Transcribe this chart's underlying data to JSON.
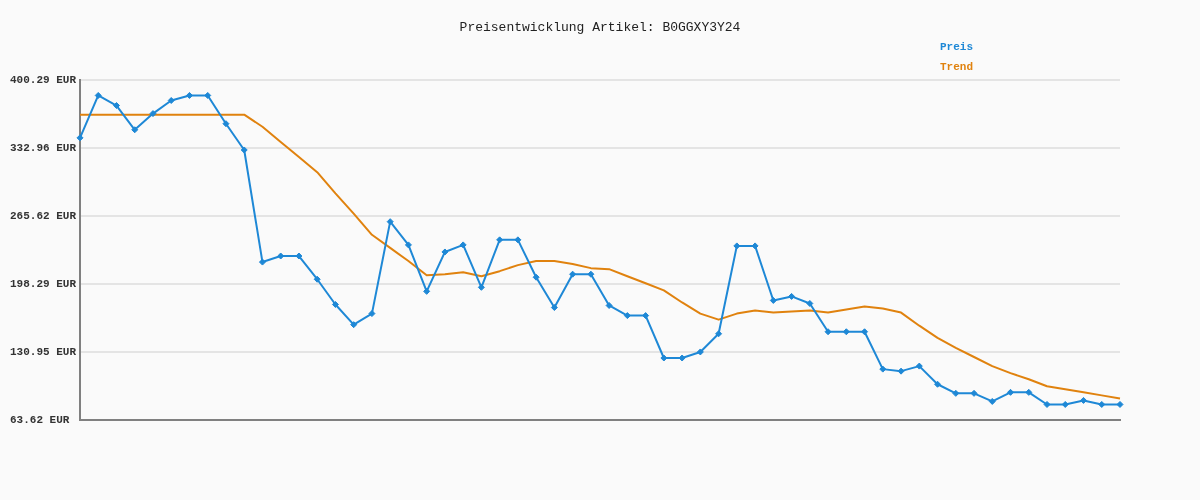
{
  "chart_data": {
    "type": "line",
    "title": "Preisentwicklung Artikel: B0GGXY3Y24",
    "categories": [
      null,
      null,
      null,
      null,
      null,
      null,
      null,
      null,
      null,
      null,
      null,
      null,
      null,
      null,
      null,
      null,
      null,
      null,
      null,
      null,
      null,
      null,
      null,
      null,
      null,
      null,
      null,
      null,
      null,
      null,
      null,
      null,
      null,
      null,
      null,
      null,
      null,
      null,
      null,
      null,
      null,
      null,
      null,
      null,
      null,
      null,
      null,
      null,
      null,
      null,
      null,
      null,
      null,
      null,
      null,
      null,
      null,
      null
    ],
    "series": [
      {
        "name": "Preis",
        "color": "#1e88d6",
        "marker": "diamond",
        "values": [
          343,
          385,
          375,
          351,
          367,
          380,
          385,
          385,
          357,
          331,
          220,
          226,
          226,
          203,
          178,
          158,
          169,
          260,
          237,
          191,
          230,
          237,
          195,
          242,
          242,
          205,
          175,
          208,
          208,
          177,
          167,
          167,
          125,
          125,
          131,
          149,
          236,
          236,
          182,
          186,
          179,
          151,
          151,
          151,
          114,
          112,
          117,
          99,
          90,
          90,
          82,
          91,
          91,
          79,
          79,
          83,
          79,
          79
        ]
      },
      {
        "name": "Trend",
        "color": "#e0820e",
        "marker": "none",
        "values": [
          366,
          366,
          366,
          366,
          366,
          366,
          366,
          366,
          366,
          366,
          354,
          339,
          324,
          309,
          288,
          268,
          247,
          234,
          221,
          207,
          208,
          210,
          206,
          211,
          217,
          221,
          221,
          218,
          214,
          213,
          206,
          199,
          192,
          180,
          169,
          163,
          169,
          172,
          170,
          171,
          172,
          170,
          173,
          176,
          174,
          170,
          157,
          145,
          135,
          126,
          117,
          110,
          104,
          97,
          94,
          91,
          88,
          85
        ]
      }
    ],
    "ylim": [
      63.62,
      400.29
    ],
    "yticks": [
      {
        "value": 63.62,
        "label": "63.62 EUR"
      },
      {
        "value": 130.95,
        "label": "130.95 EUR"
      },
      {
        "value": 198.29,
        "label": "198.29 EUR"
      },
      {
        "value": 265.62,
        "label": "265.62 EUR"
      },
      {
        "value": 332.96,
        "label": "332.96 EUR"
      },
      {
        "value": 400.29,
        "label": "400.29 EUR"
      }
    ],
    "grid": "y",
    "legend": "top right",
    "tick_labels": "y"
  }
}
